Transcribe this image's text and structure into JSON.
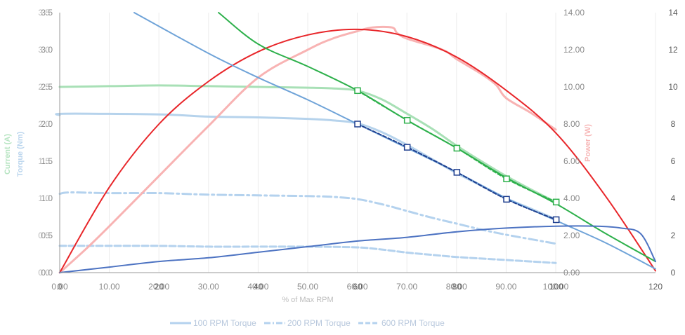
{
  "chart_data": {
    "type": "line",
    "x_axis": {
      "title": "% of Max RPM",
      "ticks_primary": [
        "0.00",
        "10.00",
        "20.00",
        "30.00",
        "40.00",
        "50.00",
        "60.00",
        "70.00",
        "80.00",
        "90.00",
        "100.00"
      ],
      "ticks_secondary": [
        "0",
        "20",
        "40",
        "60",
        "80",
        "100",
        "120"
      ],
      "range_primary": [
        0,
        100
      ],
      "range_secondary": [
        0,
        120
      ]
    },
    "y_axes": {
      "left_titles": [
        "Current (A)",
        "Torque (Nm)"
      ],
      "left_ticks_a": [
        "0.0",
        "0.5",
        "1.0",
        "1.5",
        "2.0",
        "2.5",
        "3.0",
        "3.5"
      ],
      "left_ticks_b": [
        "0.0",
        "0.5",
        "1.0",
        "1.5",
        "2.0",
        "2.5",
        "3.0",
        "3.5"
      ],
      "left_range": [
        0,
        3.5
      ],
      "right_title": "Power (W)",
      "right_ticks": [
        "0.00",
        "2.00",
        "4.00",
        "6.00",
        "8.00",
        "10.00",
        "12.00",
        "14.00"
      ],
      "right_range": [
        0,
        14
      ],
      "far_right_ticks": [
        "0",
        "2",
        "4",
        "6",
        "8",
        "10",
        "12",
        "14"
      ],
      "far_right_range": [
        0,
        14
      ]
    },
    "grid": "vertical lines",
    "legend": {
      "position": "bottom",
      "entries": [
        "100 RPM Torque",
        "200 RPM Torque",
        "600 RPM Torque"
      ]
    },
    "colors": {
      "current_light": "#a8e0b6",
      "torque_light": "#b6d3ec",
      "power_light": "#f8b3b3",
      "green_line": "#2db04b",
      "blue_line": "#6fa3d8",
      "red_line": "#e8262a",
      "dark_blue": "#1f3f8f",
      "mid_blue": "#4d73c2",
      "dashed_light": "#b4d2ee"
    },
    "series": [
      {
        "name": "100 RPM Torque",
        "style": "solid-light",
        "axis": "left",
        "x": [
          0,
          1,
          20,
          30,
          40,
          50,
          55,
          60,
          65,
          70,
          75,
          80,
          85,
          90,
          95,
          100
        ],
        "y": [
          2.12,
          2.14,
          2.13,
          2.1,
          2.09,
          2.07,
          2.05,
          2.01,
          1.89,
          1.72,
          1.53,
          1.34,
          1.17,
          1.0,
          0.86,
          0.72
        ]
      },
      {
        "name": "200 RPM Torque",
        "style": "dash-dot-light",
        "axis": "left",
        "x": [
          0,
          2,
          10,
          20,
          30,
          40,
          50,
          55,
          60,
          65,
          70,
          75,
          80,
          85,
          90,
          95,
          100
        ],
        "y": [
          1.06,
          1.08,
          1.07,
          1.07,
          1.05,
          1.04,
          1.03,
          1.02,
          0.99,
          0.92,
          0.83,
          0.74,
          0.66,
          0.58,
          0.51,
          0.45,
          0.39
        ]
      },
      {
        "name": "600 RPM Torque",
        "style": "dashed-light",
        "axis": "left",
        "x": [
          0,
          10,
          20,
          30,
          40,
          50,
          60,
          65,
          70,
          75,
          80,
          85,
          90,
          95,
          100
        ],
        "y": [
          0.36,
          0.36,
          0.36,
          0.35,
          0.35,
          0.35,
          0.34,
          0.31,
          0.27,
          0.24,
          0.21,
          0.19,
          0.17,
          0.15,
          0.13
        ]
      },
      {
        "axis": "left",
        "style": "solid-light-green",
        "x": [
          0,
          10,
          20,
          30,
          40,
          50,
          55,
          60,
          65,
          70,
          75,
          80,
          85,
          90,
          95,
          100
        ],
        "y": [
          2.5,
          2.51,
          2.52,
          2.51,
          2.5,
          2.49,
          2.48,
          2.45,
          2.33,
          2.14,
          1.94,
          1.71,
          1.5,
          1.3,
          1.12,
          0.95
        ]
      },
      {
        "axis": "right",
        "style": "solid-light-red",
        "x": [
          0,
          5,
          10,
          20,
          30,
          40,
          50,
          55,
          60,
          63,
          67,
          68,
          70,
          75,
          78,
          80,
          85,
          88,
          90,
          95,
          100
        ],
        "y": [
          0,
          1.2,
          2.5,
          5.2,
          7.9,
          10.5,
          12.0,
          12.6,
          13.0,
          13.2,
          13.2,
          12.9,
          12.6,
          12.2,
          11.9,
          11.5,
          10.7,
          10.1,
          9.4,
          8.6,
          7.7
        ]
      },
      {
        "axis": "far-right",
        "style": "solid-red",
        "x": [
          0,
          10,
          20,
          30,
          40,
          50,
          60,
          70,
          80,
          90,
          100,
          110,
          120
        ],
        "y": [
          0,
          4.6,
          8.0,
          10.3,
          11.9,
          12.8,
          13.1,
          12.7,
          11.6,
          9.8,
          7.5,
          4.1,
          0.1
        ]
      },
      {
        "axis": "far-right",
        "style": "solid-green",
        "x": [
          32,
          40,
          50,
          60,
          70,
          80,
          90,
          100,
          110,
          120
        ],
        "y": [
          14,
          12.3,
          11.1,
          9.8,
          8.2,
          6.7,
          5.1,
          3.7,
          2.1,
          0.6
        ]
      },
      {
        "axis": "far-right",
        "style": "solid-blue",
        "x": [
          15,
          30,
          40,
          50,
          60,
          70,
          80,
          90,
          100,
          110,
          120
        ],
        "y": [
          14,
          11.8,
          10.5,
          9.3,
          8.0,
          6.7,
          5.4,
          4.0,
          2.8,
          1.6,
          0.2
        ]
      },
      {
        "axis": "far-right",
        "style": "solid-mid-blue",
        "x": [
          0,
          10,
          20,
          30,
          40,
          50,
          60,
          70,
          80,
          90,
          100,
          108,
          113,
          117,
          120
        ],
        "y": [
          0,
          0.3,
          0.6,
          0.8,
          1.1,
          1.4,
          1.7,
          1.9,
          2.2,
          2.4,
          2.5,
          2.5,
          2.4,
          2.1,
          0.6
        ]
      },
      {
        "axis": "far-right",
        "style": "dashed-dark-blue",
        "marker": "square",
        "x": [
          60,
          70,
          80,
          90,
          100
        ],
        "y": [
          8.0,
          6.75,
          5.4,
          3.95,
          2.85
        ]
      },
      {
        "axis": "far-right",
        "style": "dashed-green",
        "marker": "square",
        "x": [
          60,
          70,
          80,
          90,
          100
        ],
        "y": [
          9.8,
          8.2,
          6.7,
          5.05,
          3.8
        ]
      }
    ]
  }
}
